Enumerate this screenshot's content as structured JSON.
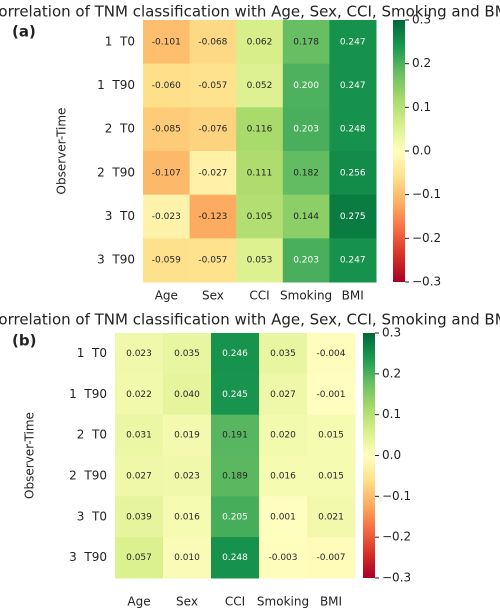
{
  "chart_data": [
    {
      "type": "heatmap",
      "title": "Correlation of TNM classification with Age, Sex, CCI, Smoking and BMI",
      "panel_label": "(a)",
      "y_label": "Observer-Time",
      "colormap": "RdYlGn",
      "x_categories": [
        "Age",
        "Sex",
        "CCI",
        "Smoking",
        "BMI"
      ],
      "y_categories": [
        "1  T0",
        "1  T90",
        "2  T0",
        "2  T90",
        "3  T0",
        "3  T90"
      ],
      "values": [
        [
          -0.101,
          -0.068,
          0.062,
          0.178,
          0.247
        ],
        [
          -0.06,
          -0.057,
          0.052,
          0.2,
          0.247
        ],
        [
          -0.085,
          -0.076,
          0.116,
          0.203,
          0.248
        ],
        [
          -0.107,
          -0.027,
          0.111,
          0.182,
          0.256
        ],
        [
          -0.023,
          -0.123,
          0.105,
          0.144,
          0.275
        ],
        [
          -0.059,
          -0.057,
          0.053,
          0.203,
          0.247
        ]
      ],
      "value_labels": [
        [
          "-0.101",
          "-0.068",
          "0.062",
          "0.178",
          "0.247"
        ],
        [
          "-0.060",
          "-0.057",
          "0.052",
          "0.200",
          "0.247"
        ],
        [
          "-0.085",
          "-0.076",
          "0.116",
          "0.203",
          "0.248"
        ],
        [
          "-0.107",
          "-0.027",
          "0.111",
          "0.182",
          "0.256"
        ],
        [
          "-0.023",
          "-0.123",
          "0.105",
          "0.144",
          "0.275"
        ],
        [
          "-0.059",
          "-0.057",
          "0.053",
          "0.203",
          "0.247"
        ]
      ],
      "clim": [
        -0.3,
        0.3
      ],
      "cticks": [
        0.3,
        0.2,
        0.1,
        {
          "value": 0,
          "label": "0.0"
        },
        {
          "value": -0.1,
          "label": "−0.1"
        },
        {
          "value": -0.2,
          "label": "−0.2"
        },
        {
          "value": -0.3,
          "label": "−0.3"
        }
      ]
    },
    {
      "type": "heatmap",
      "title": "Correlation of TNM classification with Age, Sex, CCI, Smoking and BMI",
      "panel_label": "(b)",
      "y_label": "Observer-Time",
      "colormap": "RdYlGn",
      "x_categories": [
        "Age",
        "Sex",
        "CCI",
        "Smoking",
        "BMI"
      ],
      "y_categories": [
        "1  T0",
        "1  T90",
        "2  T0",
        "2  T90",
        "3  T0",
        "3  T90"
      ],
      "values": [
        [
          0.023,
          0.035,
          0.246,
          0.035,
          -0.004
        ],
        [
          0.022,
          0.04,
          0.245,
          0.027,
          -0.001
        ],
        [
          0.031,
          0.019,
          0.191,
          0.02,
          0.015
        ],
        [
          0.027,
          0.023,
          0.189,
          0.016,
          0.015
        ],
        [
          0.039,
          0.016,
          0.205,
          0.001,
          0.021
        ],
        [
          0.057,
          0.01,
          0.248,
          -0.003,
          -0.007
        ]
      ],
      "value_labels": [
        [
          "0.023",
          "0.035",
          "0.246",
          "0.035",
          "-0.004"
        ],
        [
          "0.022",
          "0.040",
          "0.245",
          "0.027",
          "-0.001"
        ],
        [
          "0.031",
          "0.019",
          "0.191",
          "0.020",
          "0.015"
        ],
        [
          "0.027",
          "0.023",
          "0.189",
          "0.016",
          "0.015"
        ],
        [
          "0.039",
          "0.016",
          "0.205",
          "0.001",
          "0.021"
        ],
        [
          "0.057",
          "0.010",
          "0.248",
          "-0.003",
          "-0.007"
        ]
      ],
      "clim": [
        -0.3,
        0.3
      ],
      "cticks": [
        0.3,
        0.2,
        0.1,
        {
          "value": 0,
          "label": "0.0"
        },
        {
          "value": -0.1,
          "label": "−0.1"
        },
        {
          "value": -0.2,
          "label": "−0.2"
        },
        {
          "value": -0.3,
          "label": "−0.3"
        }
      ]
    }
  ]
}
